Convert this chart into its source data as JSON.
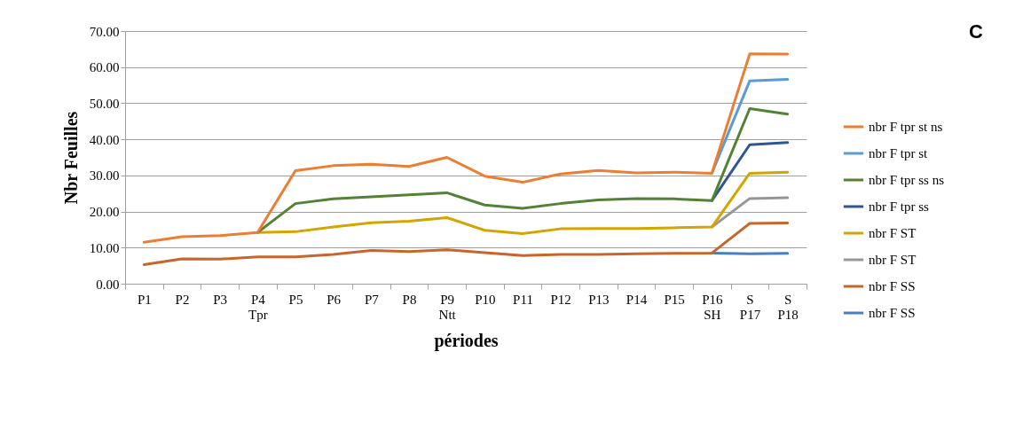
{
  "chart_data": {
    "type": "line",
    "title": "C",
    "xlabel": "périodes",
    "ylabel": "Nbr Feuilles",
    "categories": [
      "P1",
      "P2",
      "P3",
      "P4\nTpr",
      "P5",
      "P6",
      "P7",
      "P8",
      "P9\nNtt",
      "P10",
      "P11",
      "P12",
      "P13",
      "P14",
      "P15",
      "P16\nSH",
      "S\nP17",
      "S\nP18"
    ],
    "series": [
      {
        "name": "nbr F tpr st ns",
        "color": "#ed7d31",
        "values": [
          11.5,
          13.0,
          13.3,
          14.2,
          31.3,
          32.7,
          33.1,
          32.5,
          35.0,
          29.8,
          28.1,
          30.4,
          31.4,
          30.7,
          30.9,
          30.6,
          63.7,
          63.6
        ]
      },
      {
        "name": "nbr F tpr st",
        "color": "#5b9bd5",
        "values": [
          null,
          null,
          null,
          null,
          null,
          null,
          null,
          null,
          null,
          null,
          null,
          null,
          null,
          null,
          null,
          30.6,
          56.2,
          56.6
        ]
      },
      {
        "name": "nbr F  tpr ss ns",
        "color": "#548235",
        "values": [
          null,
          null,
          null,
          14.2,
          22.2,
          23.5,
          24.1,
          24.6,
          25.2,
          21.8,
          20.9,
          22.2,
          23.2,
          23.6,
          23.5,
          23.0,
          48.5,
          47.0
        ]
      },
      {
        "name": "nbr F  tpr ss",
        "color": "#2f5597",
        "values": [
          null,
          null,
          null,
          null,
          null,
          null,
          null,
          null,
          null,
          null,
          null,
          null,
          null,
          null,
          null,
          23.0,
          38.5,
          39.1
        ]
      },
      {
        "name": "nbr F ST",
        "color": "#d4a500",
        "values": [
          null,
          null,
          null,
          14.2,
          14.4,
          15.7,
          16.9,
          17.3,
          18.3,
          14.8,
          13.9,
          15.2,
          15.3,
          15.3,
          15.5,
          15.7,
          30.6,
          30.9
        ]
      },
      {
        "name": "nbr F ST",
        "color": "#969696",
        "values": [
          null,
          null,
          null,
          null,
          null,
          null,
          null,
          null,
          null,
          null,
          null,
          null,
          null,
          null,
          null,
          15.7,
          23.6,
          23.8
        ]
      },
      {
        "name": "nbr F SS",
        "color": "#c8652b",
        "values": [
          5.3,
          6.9,
          6.8,
          7.4,
          7.4,
          8.1,
          9.2,
          8.9,
          9.4,
          8.6,
          7.8,
          8.1,
          8.1,
          8.3,
          8.4,
          8.5,
          16.7,
          16.8
        ]
      },
      {
        "name": "nbr F SS",
        "color": "#4a7fbf",
        "values": [
          null,
          null,
          null,
          null,
          null,
          null,
          null,
          null,
          null,
          null,
          null,
          null,
          null,
          null,
          null,
          8.5,
          8.3,
          8.4
        ]
      }
    ],
    "ylim": [
      0,
      70
    ],
    "yticks": [
      {
        "value": 0,
        "label": "0.00"
      },
      {
        "value": 10,
        "label": "10.00"
      },
      {
        "value": 20,
        "label": "20.00"
      },
      {
        "value": 30,
        "label": "30.00"
      },
      {
        "value": 40,
        "label": "40.00"
      },
      {
        "value": 50,
        "label": "50.00"
      },
      {
        "value": 60,
        "label": "60.00"
      },
      {
        "value": 70,
        "label": "70.00"
      }
    ],
    "grid": "y",
    "legend": "right",
    "line_style": "solid",
    "marker": "none"
  }
}
